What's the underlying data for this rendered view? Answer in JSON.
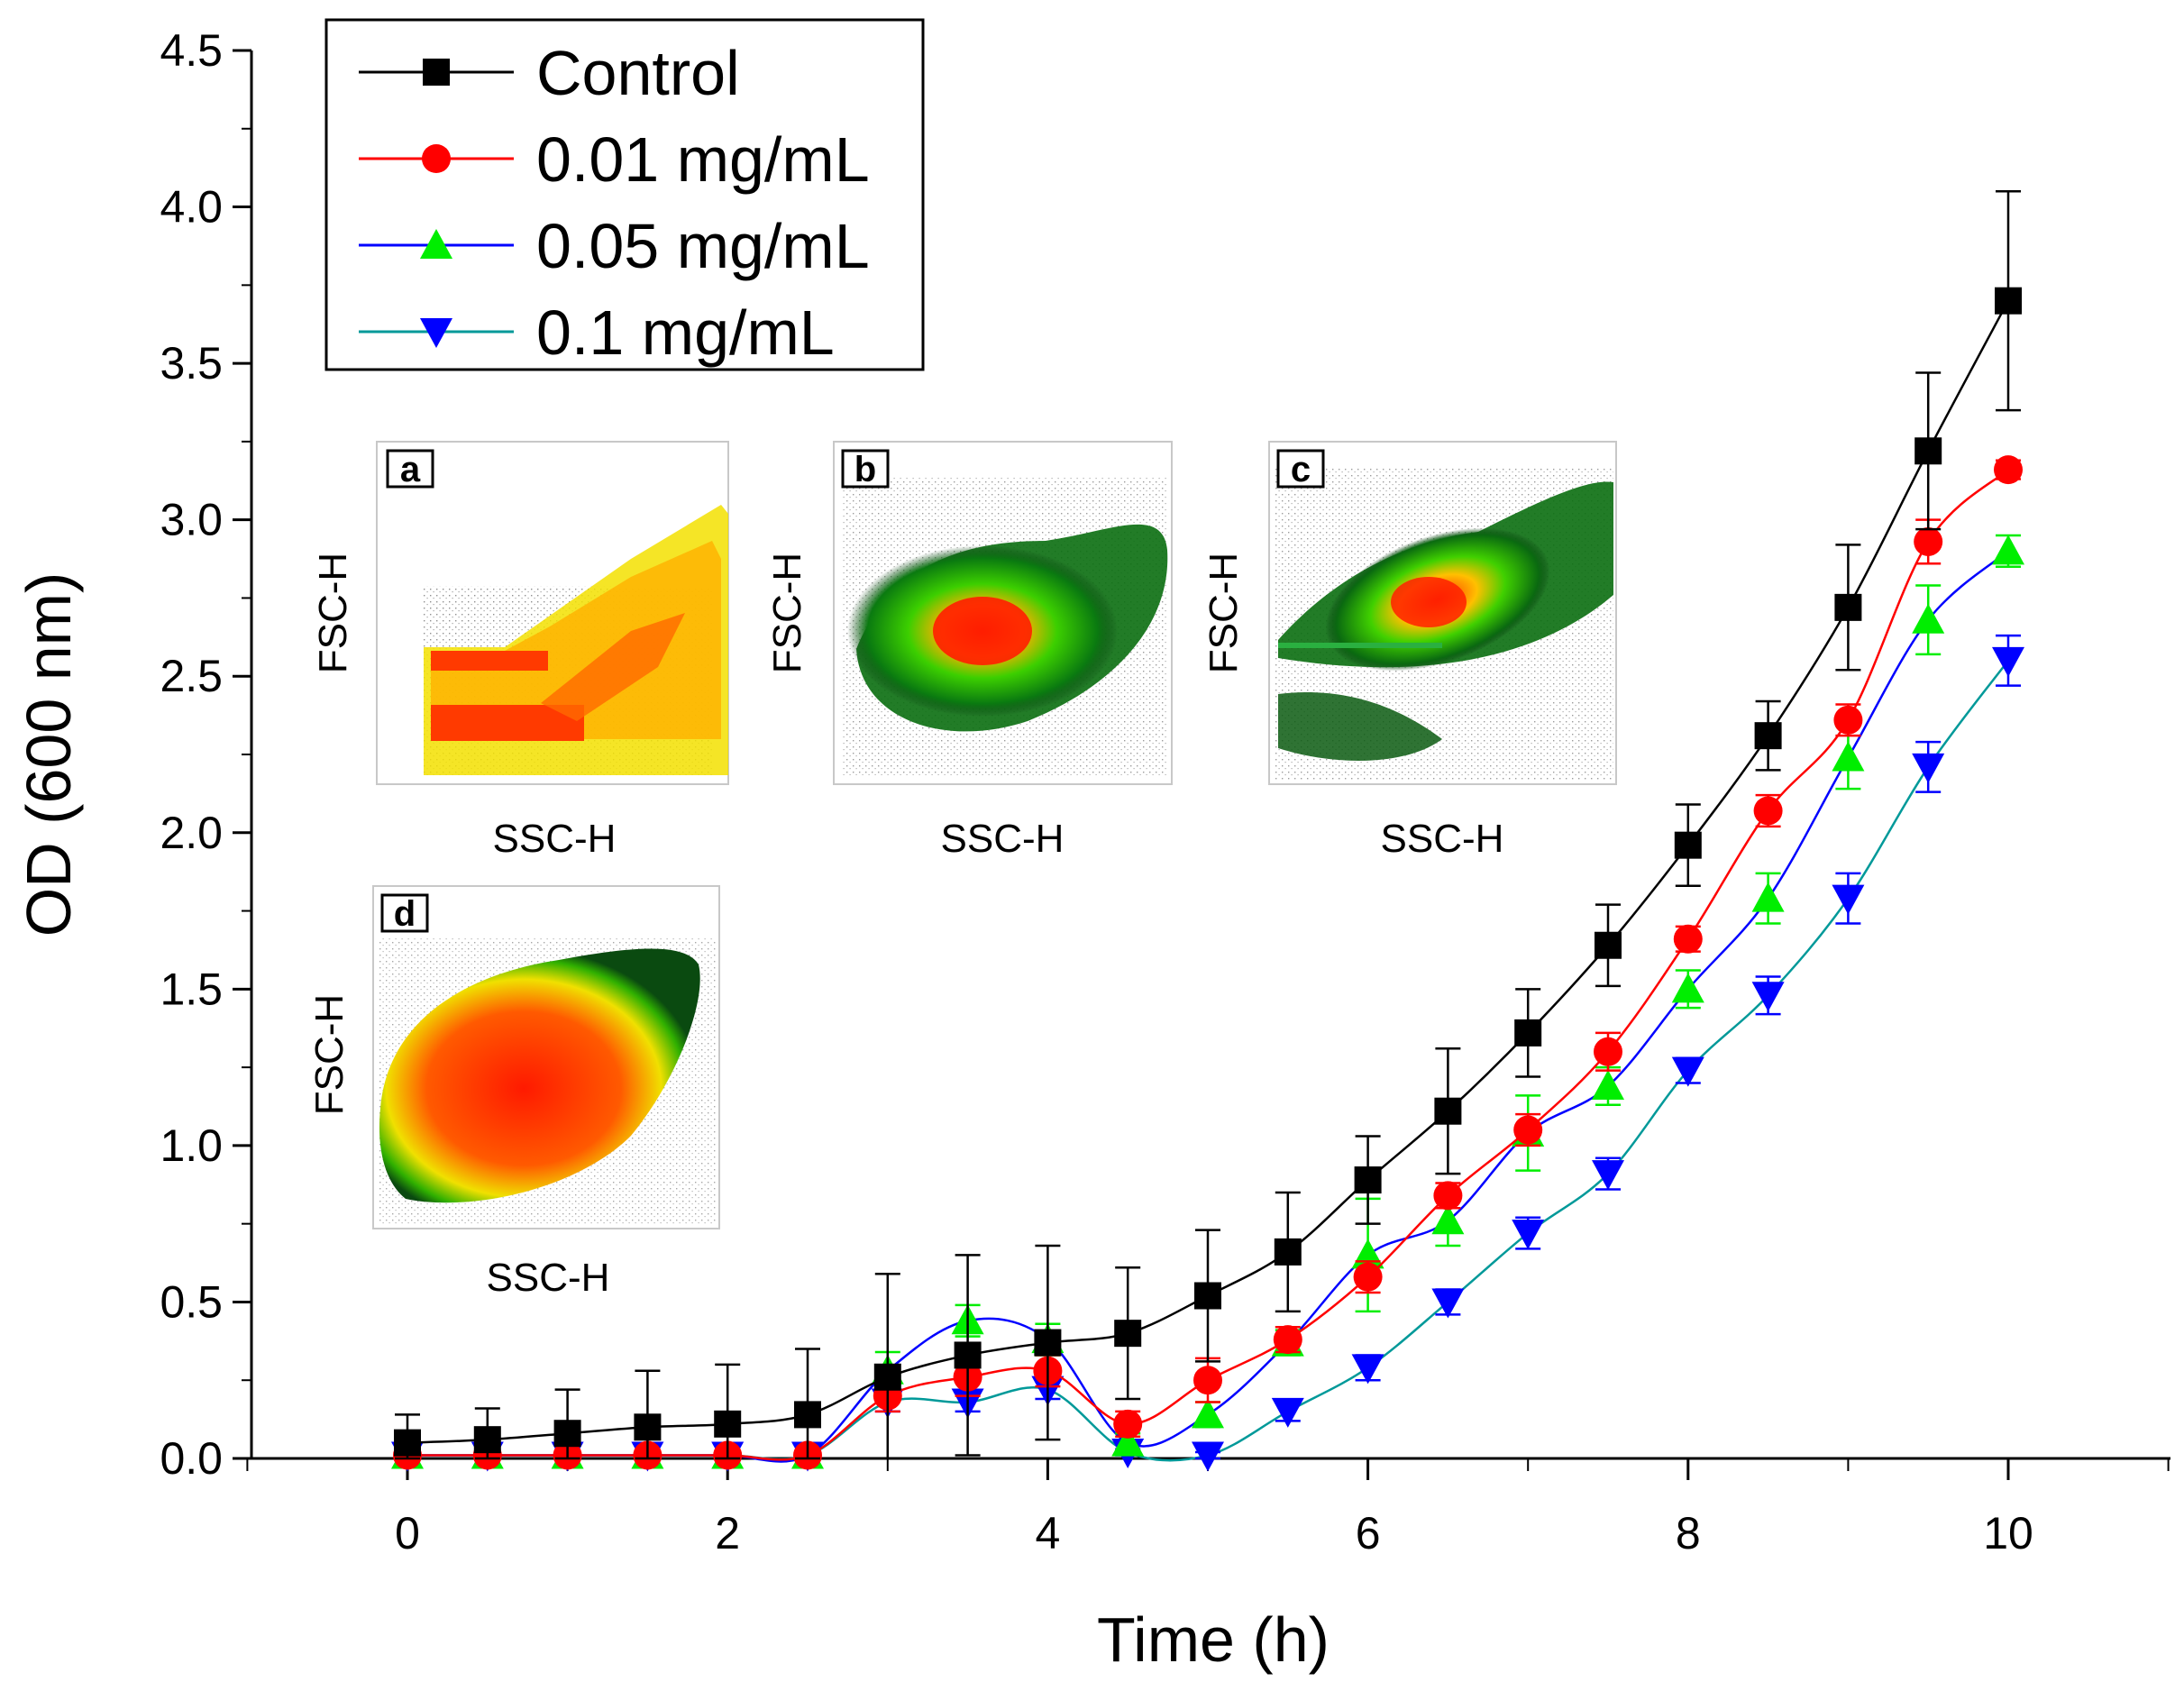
{
  "chart_data": {
    "type": "line",
    "xlabel": "Time (h)",
    "ylabel": "OD (600 nm)",
    "xlim": [
      -1,
      11.3
    ],
    "ylim": [
      0,
      4.5
    ],
    "x_ticks": [
      0,
      2,
      4,
      6,
      8,
      10
    ],
    "x_tick_labels": [
      "0",
      "2",
      "4",
      "6",
      "8",
      "10"
    ],
    "y_ticks": [
      0,
      0.5,
      1.0,
      1.5,
      2.0,
      2.5,
      3.0,
      3.5,
      4.0,
      4.5
    ],
    "y_tick_labels": [
      "0.0",
      "0.5",
      "1.0",
      "1.5",
      "2.0",
      "2.5",
      "3.0",
      "3.5",
      "4.0",
      "4.5"
    ],
    "legend_position": "top-left",
    "x": [
      0,
      0.5,
      1,
      1.5,
      2,
      2.5,
      3,
      3.5,
      4,
      4.5,
      5,
      5.5,
      6,
      6.5,
      7,
      7.5,
      8,
      8.5,
      9,
      9.5,
      10
    ],
    "series": [
      {
        "name": "Control",
        "color": "#000000",
        "marker": "square",
        "values": [
          0.05,
          0.06,
          0.08,
          0.1,
          0.11,
          0.14,
          0.26,
          0.33,
          0.37,
          0.4,
          0.52,
          0.66,
          0.89,
          1.11,
          1.36,
          1.64,
          1.96,
          2.31,
          2.72,
          3.22,
          3.7
        ],
        "errors": [
          0.09,
          0.1,
          0.14,
          0.18,
          0.19,
          0.21,
          0.33,
          0.32,
          0.31,
          0.21,
          0.21,
          0.19,
          0.14,
          0.2,
          0.14,
          0.13,
          0.13,
          0.11,
          0.2,
          0.25,
          0.35
        ]
      },
      {
        "name": "0.01 mg/mL",
        "color": "#ff0000",
        "marker": "circle",
        "values": [
          0.01,
          0.01,
          0.01,
          0.01,
          0.01,
          0.01,
          0.2,
          0.26,
          0.28,
          0.11,
          0.25,
          0.38,
          0.58,
          0.84,
          1.05,
          1.3,
          1.66,
          2.07,
          2.36,
          2.93,
          3.16
        ],
        "errors": [
          0.01,
          0.01,
          0.01,
          0.01,
          0.01,
          0.01,
          0.05,
          0.06,
          0.05,
          0.04,
          0.07,
          0.04,
          0.05,
          0.04,
          0.05,
          0.06,
          0.04,
          0.05,
          0.05,
          0.07,
          0.03
        ]
      },
      {
        "name": "0.05 mg/mL",
        "color": "#0000ff",
        "marker": "triangle-up",
        "marker_color": "#00ee00",
        "values": [
          0.01,
          0.01,
          0.01,
          0.01,
          0.01,
          0.01,
          0.28,
          0.44,
          0.38,
          0.05,
          0.14,
          0.37,
          0.65,
          0.76,
          1.04,
          1.19,
          1.5,
          1.79,
          2.24,
          2.68,
          2.9
        ],
        "errors": [
          0.01,
          0.01,
          0.01,
          0.01,
          0.01,
          0.01,
          0.06,
          0.05,
          0.05,
          0.03,
          0.04,
          0.04,
          0.18,
          0.08,
          0.12,
          0.06,
          0.06,
          0.08,
          0.1,
          0.11,
          0.05
        ]
      },
      {
        "name": "0.1 mg/mL",
        "color": "#009999",
        "marker": "triangle-down",
        "marker_color": "#0000ff",
        "values": [
          0.01,
          0.01,
          0.01,
          0.01,
          0.01,
          0.01,
          0.18,
          0.18,
          0.22,
          0.02,
          0.01,
          0.15,
          0.29,
          0.5,
          0.72,
          0.91,
          1.24,
          1.48,
          1.79,
          2.21,
          2.55
        ],
        "errors": [
          0.01,
          0.01,
          0.01,
          0.01,
          0.01,
          0.01,
          0.03,
          0.03,
          0.03,
          0.01,
          0.01,
          0.03,
          0.04,
          0.04,
          0.05,
          0.05,
          0.04,
          0.06,
          0.08,
          0.08,
          0.08
        ]
      }
    ],
    "insets": [
      {
        "letter": "a",
        "xlabel": "SSC-H",
        "ylabel": "FSC-H"
      },
      {
        "letter": "b",
        "xlabel": "SSC-H",
        "ylabel": "FSC-H"
      },
      {
        "letter": "c",
        "xlabel": "SSC-H",
        "ylabel": "FSC-H"
      },
      {
        "letter": "d",
        "xlabel": "SSC-H",
        "ylabel": "FSC-H"
      }
    ]
  }
}
